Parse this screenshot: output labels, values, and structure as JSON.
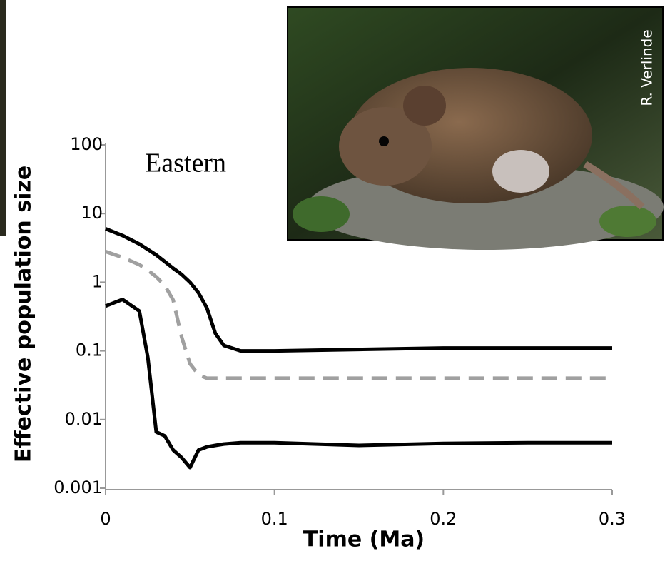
{
  "chart_data": {
    "type": "line",
    "annotation": "Eastern",
    "photo_credit": "R. Verlinde",
    "x_label": "Time (Ma)",
    "y_label": "Effective population size",
    "x": [
      0,
      0.01,
      0.02,
      0.025,
      0.03,
      0.035,
      0.04,
      0.045,
      0.05,
      0.055,
      0.06,
      0.065,
      0.07,
      0.08,
      0.1,
      0.15,
      0.2,
      0.25,
      0.3
    ],
    "series": [
      {
        "color": "#000000",
        "dashed": false,
        "values": [
          6,
          4.8,
          3.6,
          3.0,
          2.5,
          2.0,
          1.6,
          1.3,
          1.0,
          0.7,
          0.42,
          0.18,
          0.12,
          0.1,
          0.1,
          0.105,
          0.11,
          0.11,
          0.11
        ]
      },
      {
        "color": "#a0a0a0",
        "dashed": true,
        "values": [
          2.8,
          2.3,
          1.8,
          1.5,
          1.2,
          0.9,
          0.55,
          0.16,
          0.065,
          0.045,
          0.04,
          0.04,
          0.04,
          0.04,
          0.04,
          0.04,
          0.04,
          0.04,
          0.04
        ]
      },
      {
        "color": "#000000",
        "dashed": false,
        "values": [
          0.45,
          0.56,
          0.38,
          0.08,
          0.0066,
          0.0058,
          0.0036,
          0.0028,
          0.002,
          0.0036,
          0.004,
          0.0042,
          0.0044,
          0.0046,
          0.0046,
          0.0042,
          0.0045,
          0.0046,
          0.0046
        ]
      }
    ],
    "xlim": [
      0,
      0.3
    ],
    "xticks": [
      0,
      0.1,
      0.2,
      0.3
    ],
    "ylim": [
      0.001,
      100
    ],
    "yticks": [
      0.001,
      0.01,
      0.1,
      1,
      10,
      100
    ],
    "ylog": true
  }
}
